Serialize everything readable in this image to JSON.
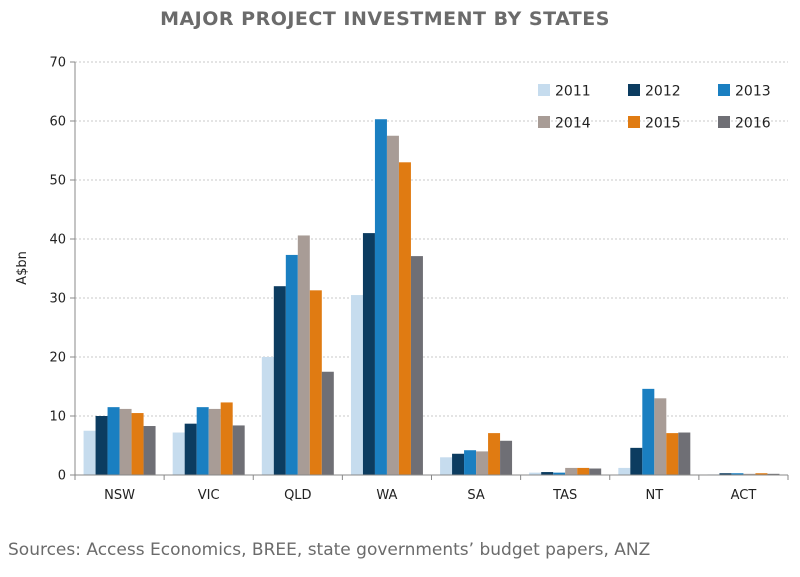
{
  "chart_data": {
    "type": "bar",
    "title": "MAJOR PROJECT INVESTMENT BY STATES",
    "ylabel": "A$bn",
    "xlabel": "",
    "ylim": [
      0,
      70
    ],
    "yticks": [
      0,
      10,
      20,
      30,
      40,
      50,
      60,
      70
    ],
    "grid": true,
    "legend_position": "top-right",
    "categories": [
      "NSW",
      "VIC",
      "QLD",
      "WA",
      "SA",
      "TAS",
      "NT",
      "ACT"
    ],
    "series": [
      {
        "name": "2011",
        "color": "#c6dcee",
        "values": [
          7.5,
          7.2,
          20.0,
          30.5,
          3.0,
          0.4,
          1.2,
          0.1
        ]
      },
      {
        "name": "2012",
        "color": "#0c3c60",
        "values": [
          10.0,
          8.7,
          32.0,
          41.0,
          3.6,
          0.5,
          4.6,
          0.3
        ]
      },
      {
        "name": "2013",
        "color": "#1a7fc1",
        "values": [
          11.5,
          11.5,
          37.3,
          60.3,
          4.2,
          0.4,
          14.6,
          0.3
        ]
      },
      {
        "name": "2014",
        "color": "#a89c96",
        "values": [
          11.2,
          11.2,
          40.6,
          57.5,
          4.0,
          1.2,
          13.0,
          0.2
        ]
      },
      {
        "name": "2015",
        "color": "#e07b12",
        "values": [
          10.5,
          12.3,
          31.3,
          53.0,
          7.1,
          1.2,
          7.1,
          0.3
        ]
      },
      {
        "name": "2016",
        "color": "#6f6f75",
        "values": [
          8.3,
          8.4,
          17.5,
          37.1,
          5.8,
          1.1,
          7.2,
          0.2
        ]
      }
    ]
  },
  "source_note": "Sources: Access Economics, BREE, state governments’ budget papers, ANZ"
}
